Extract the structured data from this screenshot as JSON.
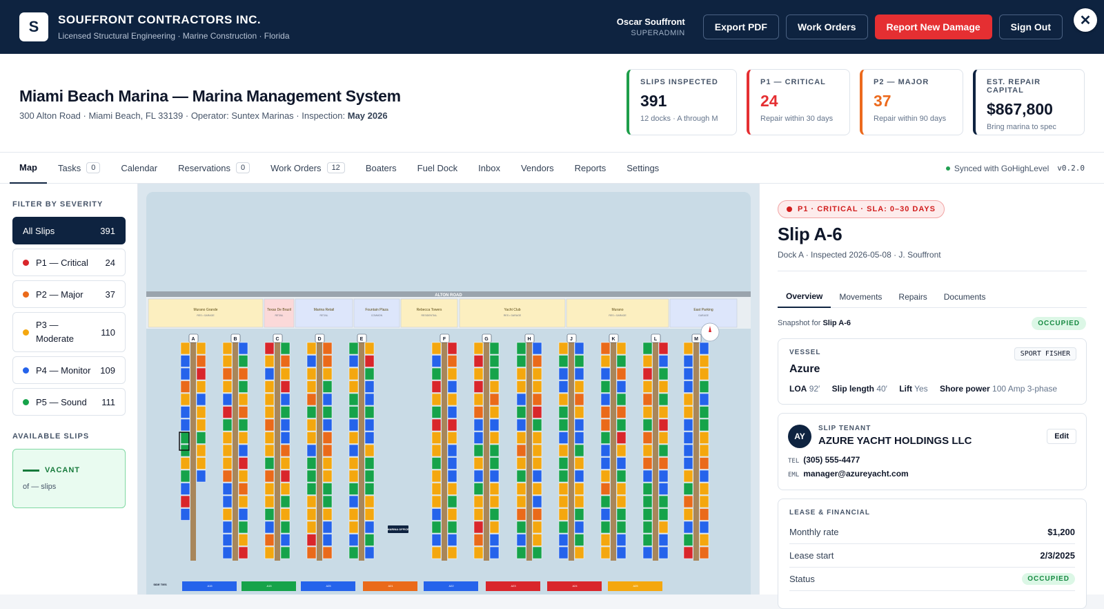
{
  "header": {
    "logo_letter": "S",
    "company": "SOUFFRONT CONTRACTORS INC.",
    "tagline": "Licensed Structural Engineering · Marine Construction · Florida",
    "user_name": "Oscar Souffront",
    "user_role": "SUPERADMIN",
    "btn_export": "Export PDF",
    "btn_work_orders": "Work Orders",
    "btn_report": "Report New Damage",
    "btn_signout": "Sign Out",
    "close_glyph": "✕"
  },
  "page": {
    "title": "Miami Beach Marina — Marina Management System",
    "address": "300 Alton Road · Miami Beach, FL 33139 · Operator: Suntex Marinas · Inspection:",
    "inspection": "May 2026"
  },
  "stats": [
    {
      "label": "SLIPS INSPECTED",
      "value": "391",
      "desc": "12 docks · A through M",
      "color": "#1e9e4a"
    },
    {
      "label": "P1 — CRITICAL",
      "value": "24",
      "desc": "Repair within 30 days",
      "color": "#e52f32"
    },
    {
      "label": "P2 — MAJOR",
      "value": "37",
      "desc": "Repair within 90 days",
      "color": "#ec6a1d"
    },
    {
      "label": "EST. REPAIR CAPITAL",
      "value": "$867,800",
      "desc": "Bring marina to spec",
      "color": "#0e2340"
    }
  ],
  "tabs": [
    {
      "label": "Map",
      "count": null
    },
    {
      "label": "Tasks",
      "count": "0"
    },
    {
      "label": "Calendar",
      "count": null
    },
    {
      "label": "Reservations",
      "count": "0"
    },
    {
      "label": "Work Orders",
      "count": "12"
    },
    {
      "label": "Boaters",
      "count": null
    },
    {
      "label": "Fuel Dock",
      "count": null
    },
    {
      "label": "Inbox",
      "count": null
    },
    {
      "label": "Vendors",
      "count": null
    },
    {
      "label": "Reports",
      "count": null
    },
    {
      "label": "Settings",
      "count": null
    }
  ],
  "sync": {
    "text": "Synced with GoHighLevel",
    "version": "v0.2.0"
  },
  "sidebar": {
    "filter_title": "FILTER BY SEVERITY",
    "filters": [
      {
        "label": "All Slips",
        "count": "391",
        "color": ""
      },
      {
        "label": "P1 — Critical",
        "count": "24",
        "color": "#d9262b"
      },
      {
        "label": "P2 — Major",
        "count": "37",
        "color": "#ea6a1a"
      },
      {
        "label": "P3 — Moderate",
        "count": "110",
        "color": "#f4a70f"
      },
      {
        "label": "P4 — Monitor",
        "count": "109",
        "color": "#2563eb"
      },
      {
        "label": "P5 — Sound",
        "count": "111",
        "color": "#16a34a"
      }
    ],
    "available_title": "AVAILABLE SLIPS",
    "vacant_label": "VACANT",
    "vacant_of": "of — slips"
  },
  "map": {
    "road": "ALTON ROAD",
    "buildings": [
      {
        "name": "Murano Grande",
        "type": "RES • GARAGE",
        "fill": "#fcefc0"
      },
      {
        "name": "Texas De Brazil",
        "type": "RETAIL",
        "fill": "#fbd9d9"
      },
      {
        "name": "Marina Retail",
        "type": "RETAIL",
        "fill": "#dde6fb"
      },
      {
        "name": "Fountain Plaza",
        "type": "COMMON",
        "fill": "#dde6fb"
      },
      {
        "name": "Rebecca Towers",
        "type": "RESIDENTIAL",
        "fill": "#fcefc0"
      },
      {
        "name": "Yacht Club",
        "type": "RES • GARAGE",
        "fill": "#fcefc0"
      },
      {
        "name": "Murano",
        "type": "RES • GARAGE",
        "fill": "#fcefc0"
      },
      {
        "name": "East Parking",
        "type": "GARAGE",
        "fill": "#dde6fb"
      }
    ],
    "docks": [
      "A",
      "B",
      "C",
      "D",
      "E",
      "F",
      "G",
      "H",
      "J",
      "K",
      "L",
      "M"
    ],
    "office": "MARINA OFFICE",
    "side_ties_label": "SIDE TIES",
    "side_ties": [
      {
        "label": "A15",
        "color": "#2563eb"
      },
      {
        "label": "A15",
        "color": "#16a34a"
      },
      {
        "label": "A25",
        "color": "#2563eb"
      },
      {
        "label": "A21",
        "color": "#ea6a1a"
      },
      {
        "label": "A22",
        "color": "#2563eb"
      },
      {
        "label": "A23",
        "color": "#d9262b"
      },
      {
        "label": "A24",
        "color": "#d9262b"
      },
      {
        "label": "A25",
        "color": "#f4a70f"
      }
    ],
    "severity_colors": {
      "p1": "#d9262b",
      "p2": "#ea6a1a",
      "p3": "#f4a70f",
      "p4": "#2563eb",
      "p5": "#16a34a"
    },
    "selected_slip": "A-6"
  },
  "detail": {
    "severity_pill": "P1 · CRITICAL · SLA: 0–30 DAYS",
    "title": "Slip A-6",
    "subtitle": "Dock A · Inspected 2026-05-08 · J. Souffront",
    "tabs": [
      "Overview",
      "Movements",
      "Repairs",
      "Documents"
    ],
    "snapshot_prefix": "Snapshot for",
    "snapshot_slip": "Slip A-6",
    "status_badge": "OCCUPIED",
    "vessel": {
      "label": "VESSEL",
      "type": "SPORT FISHER",
      "name": "Azure",
      "loa_label": "LOA",
      "loa": "92′",
      "slip_length_label": "Slip length",
      "slip_length": "40′",
      "lift_label": "Lift",
      "lift": "Yes",
      "power_label": "Shore power",
      "power": "100 Amp 3-phase"
    },
    "tenant": {
      "label": "SLIP TENANT",
      "initials": "AY",
      "name": "AZURE YACHT HOLDINGS LLC",
      "edit": "Edit",
      "tel_label": "TEL",
      "tel": "(305) 555-4477",
      "eml_label": "EML",
      "email": "manager@azureyacht.com"
    },
    "lease": {
      "label": "LEASE & FINANCIAL",
      "rows": [
        {
          "key": "Monthly rate",
          "value": "$1,200"
        },
        {
          "key": "Lease start",
          "value": "2/3/2025"
        },
        {
          "key": "Status",
          "value": "OCCUPIED"
        }
      ]
    }
  }
}
